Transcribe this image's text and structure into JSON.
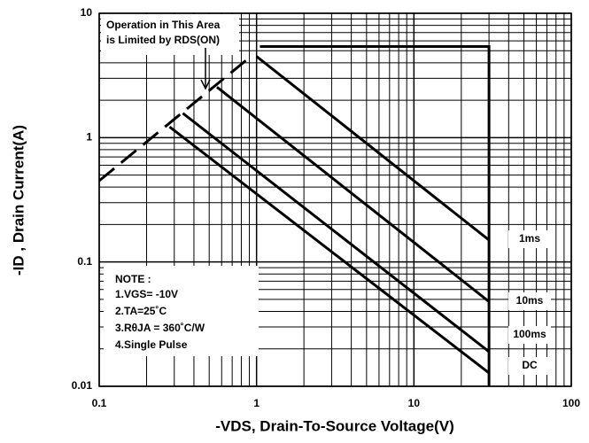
{
  "chart_data": {
    "type": "line",
    "log_x": true,
    "log_y": true,
    "grid": true,
    "minor_grid": true,
    "xlabel": "-VDS, Drain-To-Source Voltage(V)",
    "ylabel": "-ID , Drain Current(A)",
    "xlim": [
      0.1,
      100
    ],
    "ylim": [
      0.01,
      10
    ],
    "xticks": [
      0.1,
      1,
      10,
      100
    ],
    "yticks": [
      0.01,
      0.1,
      1,
      10
    ],
    "series": [
      {
        "color": "#000000",
        "style": "dashed",
        "x": [
          0.1,
          0.94
        ],
        "y": [
          0.45,
          4.6
        ]
      },
      {
        "color": "#000000",
        "x": [
          1.05,
          30,
          30
        ],
        "y": [
          5.4,
          5.4,
          0.01
        ]
      },
      {
        "name": "1ms",
        "color": "#000000",
        "x": [
          1,
          30
        ],
        "y": [
          4.5,
          0.15
        ]
      },
      {
        "name": "10ms",
        "color": "#000000",
        "x": [
          0.56,
          30
        ],
        "y": [
          2.55,
          0.048
        ]
      },
      {
        "name": "100ms",
        "color": "#000000",
        "x": [
          0.34,
          30
        ],
        "y": [
          1.57,
          0.019
        ]
      },
      {
        "name": "DC",
        "color": "#000000",
        "x": [
          0.28,
          30
        ],
        "y": [
          1.22,
          0.0128
        ]
      }
    ],
    "annotations": [
      "Operation in This Area",
      "is Limited by RDS(ON)"
    ],
    "note": [
      "NOTE :",
      "1.VGS= -10V",
      "2.TA=25˚C",
      "3.RθJA = 360˚C/W",
      "4.Single Pulse"
    ]
  }
}
